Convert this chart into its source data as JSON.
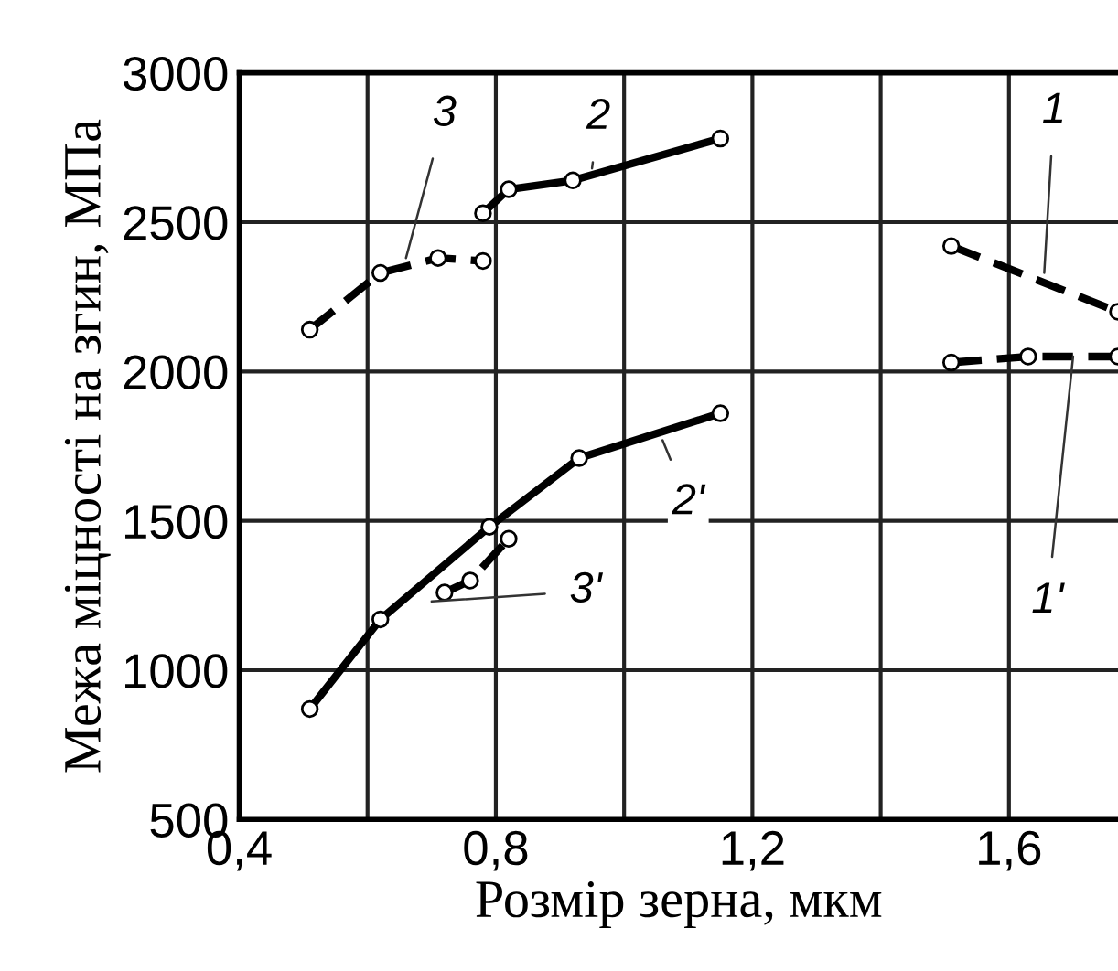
{
  "chart_data": {
    "type": "line",
    "xlabel": "Розмір зерна, мкм",
    "ylabel": "Межа міцності на згин, МПа",
    "xlim": [
      0.4,
      1.77
    ],
    "ylim": [
      500,
      3000
    ],
    "xticks": [
      {
        "value": 0.4,
        "label": "0,4"
      },
      {
        "value": 0.6,
        "label": null
      },
      {
        "value": 0.8,
        "label": "0,8"
      },
      {
        "value": 1.0,
        "label": null
      },
      {
        "value": 1.2,
        "label": "1,2"
      },
      {
        "value": 1.4,
        "label": null
      },
      {
        "value": 1.6,
        "label": "1,6"
      }
    ],
    "yticks": [
      500,
      1000,
      1500,
      2000,
      2500,
      3000
    ],
    "grid": true,
    "legend": false,
    "marker": "circle",
    "series": [
      {
        "name": "1",
        "color": "#000000",
        "line_style": "dashed",
        "x": [
          1.51,
          1.77
        ],
        "values": [
          2420,
          2200
        ]
      },
      {
        "name": "1'",
        "color": "#000000",
        "line_style": "dashed",
        "x": [
          1.51,
          1.63,
          1.77
        ],
        "values": [
          2030,
          2050,
          2050
        ]
      },
      {
        "name": "2",
        "color": "#000000",
        "line_style": "solid",
        "x": [
          0.78,
          0.82,
          0.92,
          1.15
        ],
        "values": [
          2530,
          2610,
          2640,
          2780
        ]
      },
      {
        "name": "2'",
        "color": "#000000",
        "line_style": "solid",
        "x": [
          0.51,
          0.62,
          0.79,
          0.93,
          1.15
        ],
        "values": [
          870,
          1170,
          1480,
          1710,
          1860
        ]
      },
      {
        "name": "3",
        "color": "#000000",
        "line_style": "dashed",
        "x": [
          0.51,
          0.62,
          0.71,
          0.78
        ],
        "values": [
          2140,
          2330,
          2380,
          2370
        ]
      },
      {
        "name": "3'",
        "color": "#000000",
        "line_style": "dashed",
        "x": [
          0.72,
          0.76,
          0.82
        ],
        "values": [
          1260,
          1300,
          1440
        ]
      }
    ]
  }
}
